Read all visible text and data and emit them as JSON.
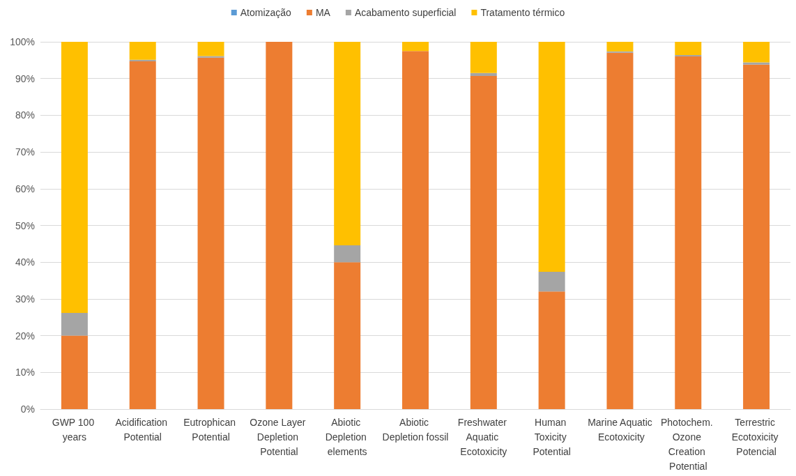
{
  "chart_data": {
    "type": "bar",
    "stacked": true,
    "categories": [
      "GWP 100 years",
      "Acidification Potential",
      "Eutrophican Potential",
      "Ozone Layer Depletion Potential",
      "Abiotic Depletion elements",
      "Abiotic Depletion fossil",
      "Freshwater Aquatic Ecotoxicity",
      "Human Toxicity Potential",
      "Marine Aquatic Ecotoxicity",
      "Photochem. Ozone Creation Potential",
      "Terrestric Ecotoxicity Potencial"
    ],
    "series": [
      {
        "name": "Atomização",
        "color": "#5b9bd5",
        "values": [
          0,
          0,
          0,
          0,
          0,
          0,
          0,
          0,
          0,
          0,
          0
        ]
      },
      {
        "name": "MA",
        "color": "#ed7d31",
        "values": [
          20,
          94.7,
          95.7,
          100,
          40,
          97.5,
          90.7,
          32,
          97,
          96,
          93.8
        ]
      },
      {
        "name": "Acabamento superficial",
        "color": "#a5a5a5",
        "values": [
          6.2,
          0.4,
          0.4,
          0,
          4.6,
          0,
          0.8,
          5.4,
          0.4,
          0.4,
          0.6
        ]
      },
      {
        "name": "Tratamento térmico",
        "color": "#ffc000",
        "values": [
          73.8,
          4.9,
          4,
          0,
          55.4,
          2.5,
          8.5,
          62.6,
          2.6,
          3.6,
          5.6
        ]
      }
    ],
    "ylim": [
      0,
      100
    ],
    "yticks": [
      {
        "value": 0,
        "label": "0%"
      },
      {
        "value": 10,
        "label": "10%"
      },
      {
        "value": 20,
        "label": "20%"
      },
      {
        "value": 30,
        "label": "30%"
      },
      {
        "value": 40,
        "label": "40%"
      },
      {
        "value": 50,
        "label": "50%"
      },
      {
        "value": 60,
        "label": "60%"
      },
      {
        "value": 70,
        "label": "70%"
      },
      {
        "value": 80,
        "label": "80%"
      },
      {
        "value": 90,
        "label": "90%"
      },
      {
        "value": 100,
        "label": "100%"
      }
    ],
    "grid": "y",
    "legend": "top"
  }
}
